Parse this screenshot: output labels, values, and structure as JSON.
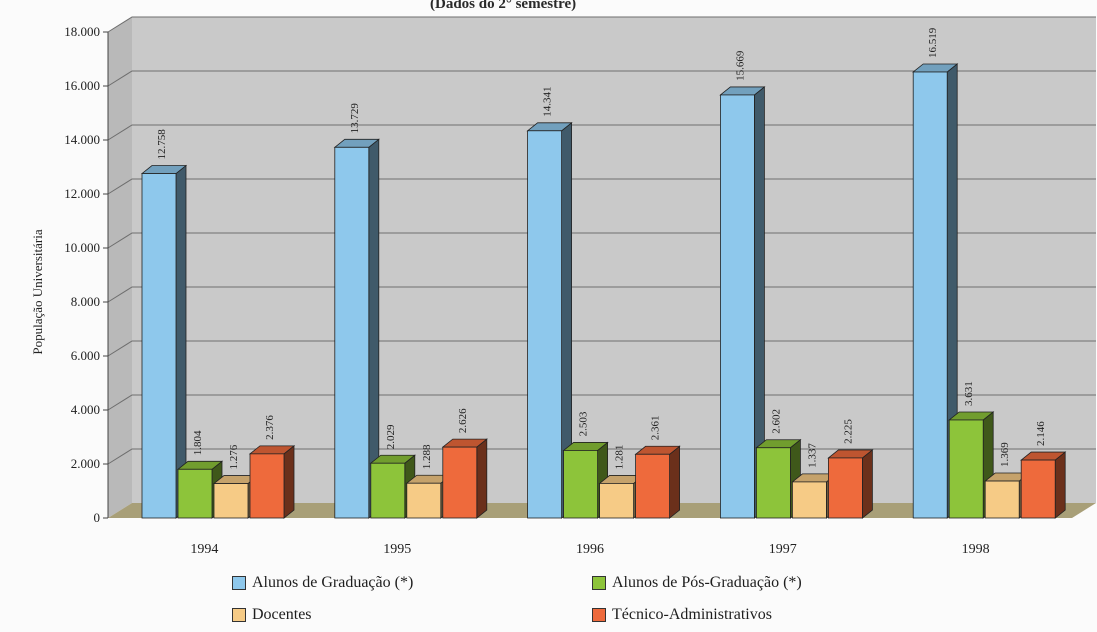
{
  "chart_data": {
    "type": "bar",
    "subtitle": "(Dados do 2° semestre)",
    "ylabel": "População Universitária",
    "xlabel": "",
    "categories": [
      "1994",
      "1995",
      "1996",
      "1997",
      "1998"
    ],
    "ylim": [
      0,
      18000
    ],
    "yticks": [
      "0",
      "2.000",
      "4.000",
      "6.000",
      "8.000",
      "10.000",
      "12.000",
      "14.000",
      "16.000",
      "18.000"
    ],
    "grid": true,
    "legend_position": "bottom",
    "series": [
      {
        "name": "Alunos de Graduação (*)",
        "color": "#8ec8ec",
        "values": [
          12758,
          13729,
          14341,
          15669,
          16519
        ],
        "labels": [
          "12.758",
          "13.729",
          "14.341",
          "15.669",
          "16.519"
        ]
      },
      {
        "name": "Alunos de Pós-Graduação (*)",
        "color": "#8dc43a",
        "values": [
          1804,
          2029,
          2503,
          2602,
          3631
        ],
        "labels": [
          "1.804",
          "2.029",
          "2.503",
          "2.602",
          "3.631"
        ]
      },
      {
        "name": "Docentes",
        "color": "#f6cb86",
        "values": [
          1276,
          1288,
          1281,
          1337,
          1369
        ],
        "labels": [
          "1.276",
          "1.288",
          "1.281",
          "1.337",
          "1.369"
        ]
      },
      {
        "name": "Técnico-Administrativos",
        "color": "#ee6a3c",
        "values": [
          2376,
          2626,
          2361,
          2225,
          2146
        ],
        "labels": [
          "2.376",
          "2.626",
          "2.361",
          "2.225",
          "2.146"
        ]
      }
    ]
  }
}
